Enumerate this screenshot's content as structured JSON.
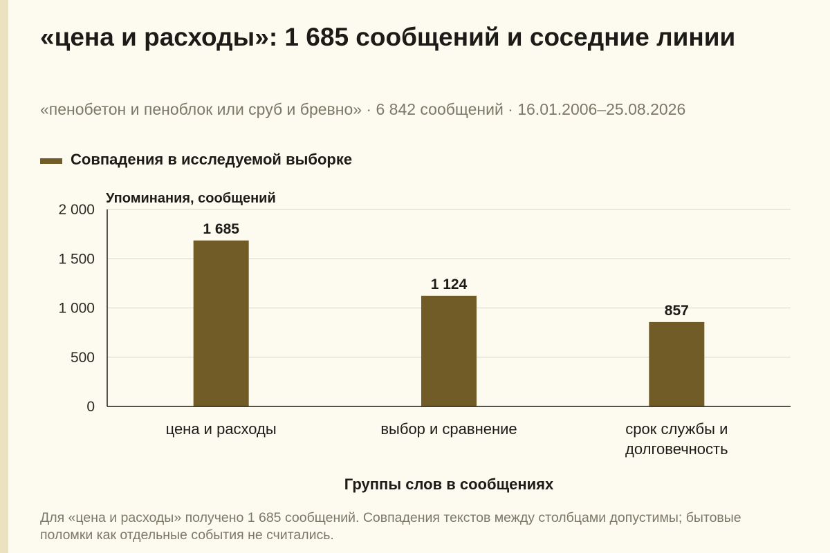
{
  "title": "«цена и расходы»: 1 685 сообщений и соседние линии",
  "subtitle": "«пенобетон и пеноблок или сруб и бревно» · 6 842 сообщений · 16.01.2006–25.08.2026",
  "legend": {
    "label": "Совпадения в исследуемой выборке",
    "color": "#715c28"
  },
  "footnote": "Для «цена и расходы» получено 1 685 сообщений. Совпадения текстов между столбцами допустимы; бытовые поломки как отдельные события не считались.",
  "chart_data": {
    "type": "bar",
    "categories": [
      [
        "цена и расходы"
      ],
      [
        "выбор и сравнение"
      ],
      [
        "срок службы и",
        "долговечность"
      ]
    ],
    "values": [
      1685,
      1124,
      857
    ],
    "value_labels": [
      "1 685",
      "1 124",
      "857"
    ],
    "ylabel": "Упоминания, сообщений",
    "xlabel": "Группы слов в сообщениях",
    "ylim": [
      0,
      2000
    ],
    "yticks": [
      0,
      500,
      1000,
      1500,
      2000
    ],
    "ytick_labels": [
      "0",
      "500",
      "1 000",
      "1 500",
      "2 000"
    ],
    "grid": true,
    "legend": "top-left",
    "colors": {
      "bar": "#715c28",
      "grid": "#d9d6c9",
      "axis": "#1c1b17"
    }
  }
}
